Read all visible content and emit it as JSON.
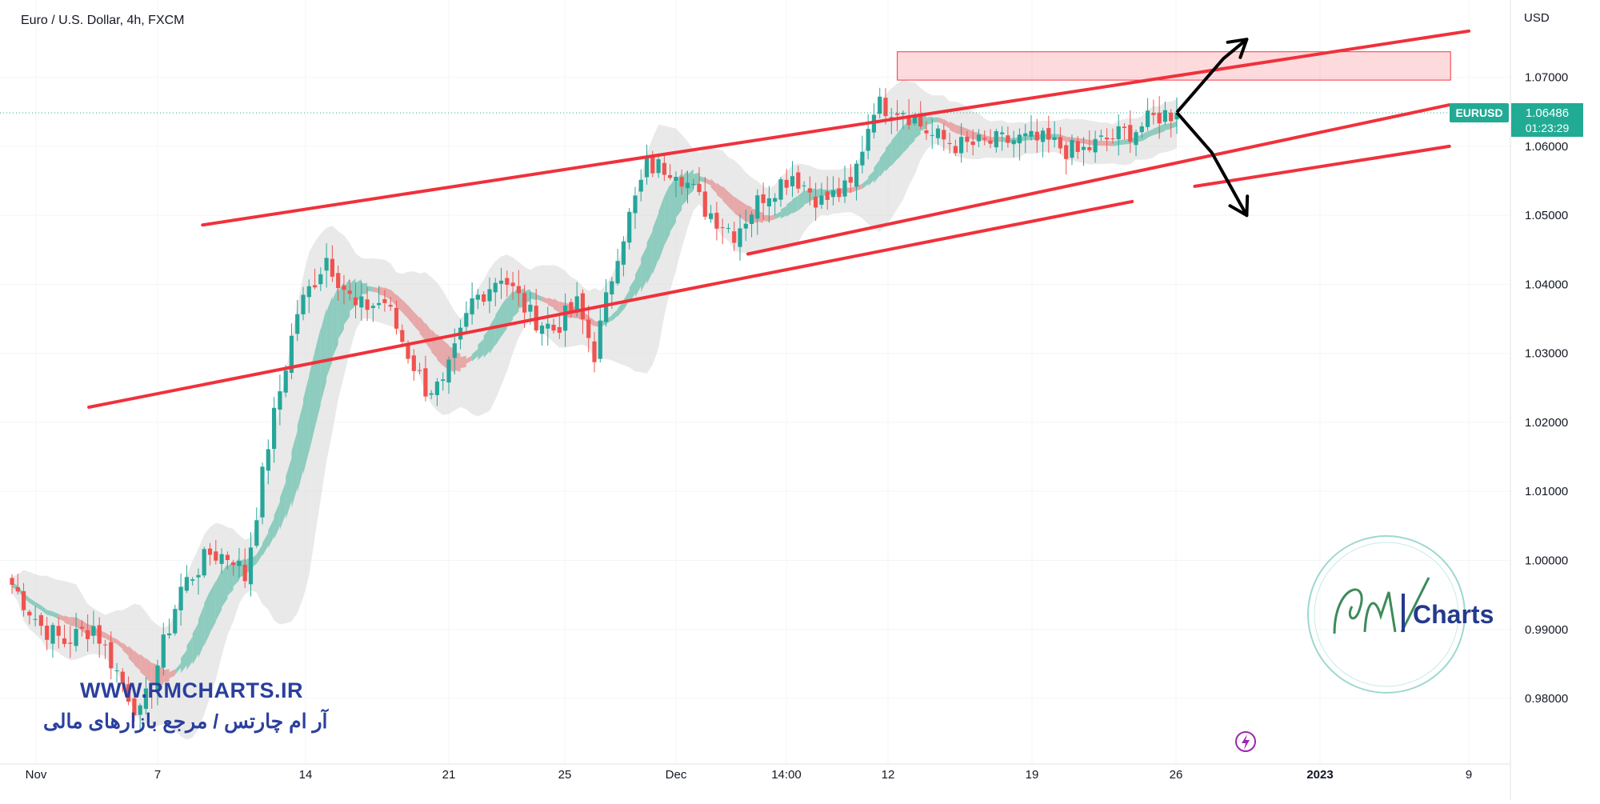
{
  "header": {
    "title": "Euro / U.S. Dollar, 4h, FXCM",
    "currency": "USD"
  },
  "price_tag": {
    "symbol": "EURUSD",
    "price": "1.06486",
    "countdown": "01:23:29"
  },
  "watermark": {
    "url": "WWW.RMCHARTS.IR",
    "persian": "آر ام چارتس / مرجع بازارهای مالی",
    "brand": "Charts"
  },
  "colors": {
    "up": "#26a69a",
    "down": "#ef5350",
    "channel": "#f0313b",
    "arrow": "#000000",
    "price_line": "#22ab94",
    "zone_fill": "rgba(242,54,69,0.18)",
    "zone_stroke": "#f23645",
    "ribbon_up": "#7cc7b6",
    "ribbon_down": "#e59c9c",
    "band": "#d7d7d7",
    "axis_text": "#131722"
  },
  "chart_data": {
    "type": "candlestick",
    "symbol": "EURUSD",
    "timeframe": "4h",
    "source": "FXCM",
    "y_axis": {
      "unit": "USD",
      "ylim": [
        0.9705,
        1.0812
      ],
      "ticks": [
        "0.98000",
        "0.99000",
        "1.00000",
        "1.01000",
        "1.02000",
        "1.03000",
        "1.04000",
        "1.05000",
        "1.06000",
        "1.07000"
      ]
    },
    "x_axis": {
      "tick_labels": [
        "Nov",
        "7",
        "14",
        "21",
        "25",
        "Dec",
        "14:00",
        "12",
        "19",
        "26",
        "2023",
        "9"
      ]
    },
    "last_price": 1.06486,
    "price_path": [
      [
        0,
        0.9965
      ],
      [
        5,
        0.9905
      ],
      [
        9,
        0.9882
      ],
      [
        14,
        0.9905
      ],
      [
        19,
        0.9822
      ],
      [
        22,
        0.9775
      ],
      [
        24,
        0.9822
      ],
      [
        29,
        0.996
      ],
      [
        34,
        1.001
      ],
      [
        38,
        1.0005
      ],
      [
        40,
        0.9975
      ],
      [
        44,
        1.017
      ],
      [
        49,
        1.036
      ],
      [
        54,
        1.044
      ],
      [
        59,
        1.0365
      ],
      [
        64,
        1.0375
      ],
      [
        68,
        1.03
      ],
      [
        71,
        1.025
      ],
      [
        74,
        1.025
      ],
      [
        79,
        1.0375
      ],
      [
        84,
        1.0415
      ],
      [
        89,
        1.0355
      ],
      [
        93,
        1.0335
      ],
      [
        97,
        1.037
      ],
      [
        100,
        1.03
      ],
      [
        104,
        1.045
      ],
      [
        109,
        1.057
      ],
      [
        114,
        1.057
      ],
      [
        119,
        1.051
      ],
      [
        124,
        1.0475
      ],
      [
        129,
        1.053
      ],
      [
        134,
        1.056
      ],
      [
        139,
        1.052
      ],
      [
        144,
        1.054
      ],
      [
        148,
        1.066
      ],
      [
        153,
        1.0655
      ],
      [
        158,
        1.0615
      ],
      [
        163,
        1.06
      ],
      [
        168,
        1.0605
      ],
      [
        173,
        1.061
      ],
      [
        178,
        1.0605
      ],
      [
        183,
        1.059
      ],
      [
        188,
        1.061
      ],
      [
        193,
        1.0625
      ],
      [
        197,
        1.0645
      ],
      [
        200,
        1.0649
      ]
    ],
    "channel_lines": [
      {
        "x": [
          3,
          29
        ],
        "y": [
          1.0486,
          1.0767
        ]
      },
      {
        "x": [
          1,
          20
        ],
        "y": [
          1.0222,
          1.052
        ]
      },
      {
        "x": [
          13,
          25
        ],
        "y": [
          1.0444,
          1.066
        ]
      },
      {
        "x": [
          21,
          25
        ],
        "y": [
          1.0542,
          1.06
        ]
      }
    ],
    "resistance_zone": {
      "y": [
        1.0696,
        1.0737
      ],
      "bars": [
        152,
        247
      ]
    },
    "projection_arrows": [
      {
        "bars": [
          200,
          208,
          212
        ],
        "y": [
          1.0649,
          1.0727,
          1.0755
        ],
        "direction": "up"
      },
      {
        "bars": [
          200,
          206,
          212
        ],
        "y": [
          1.0649,
          1.0591,
          1.05
        ],
        "direction": "down"
      }
    ]
  }
}
